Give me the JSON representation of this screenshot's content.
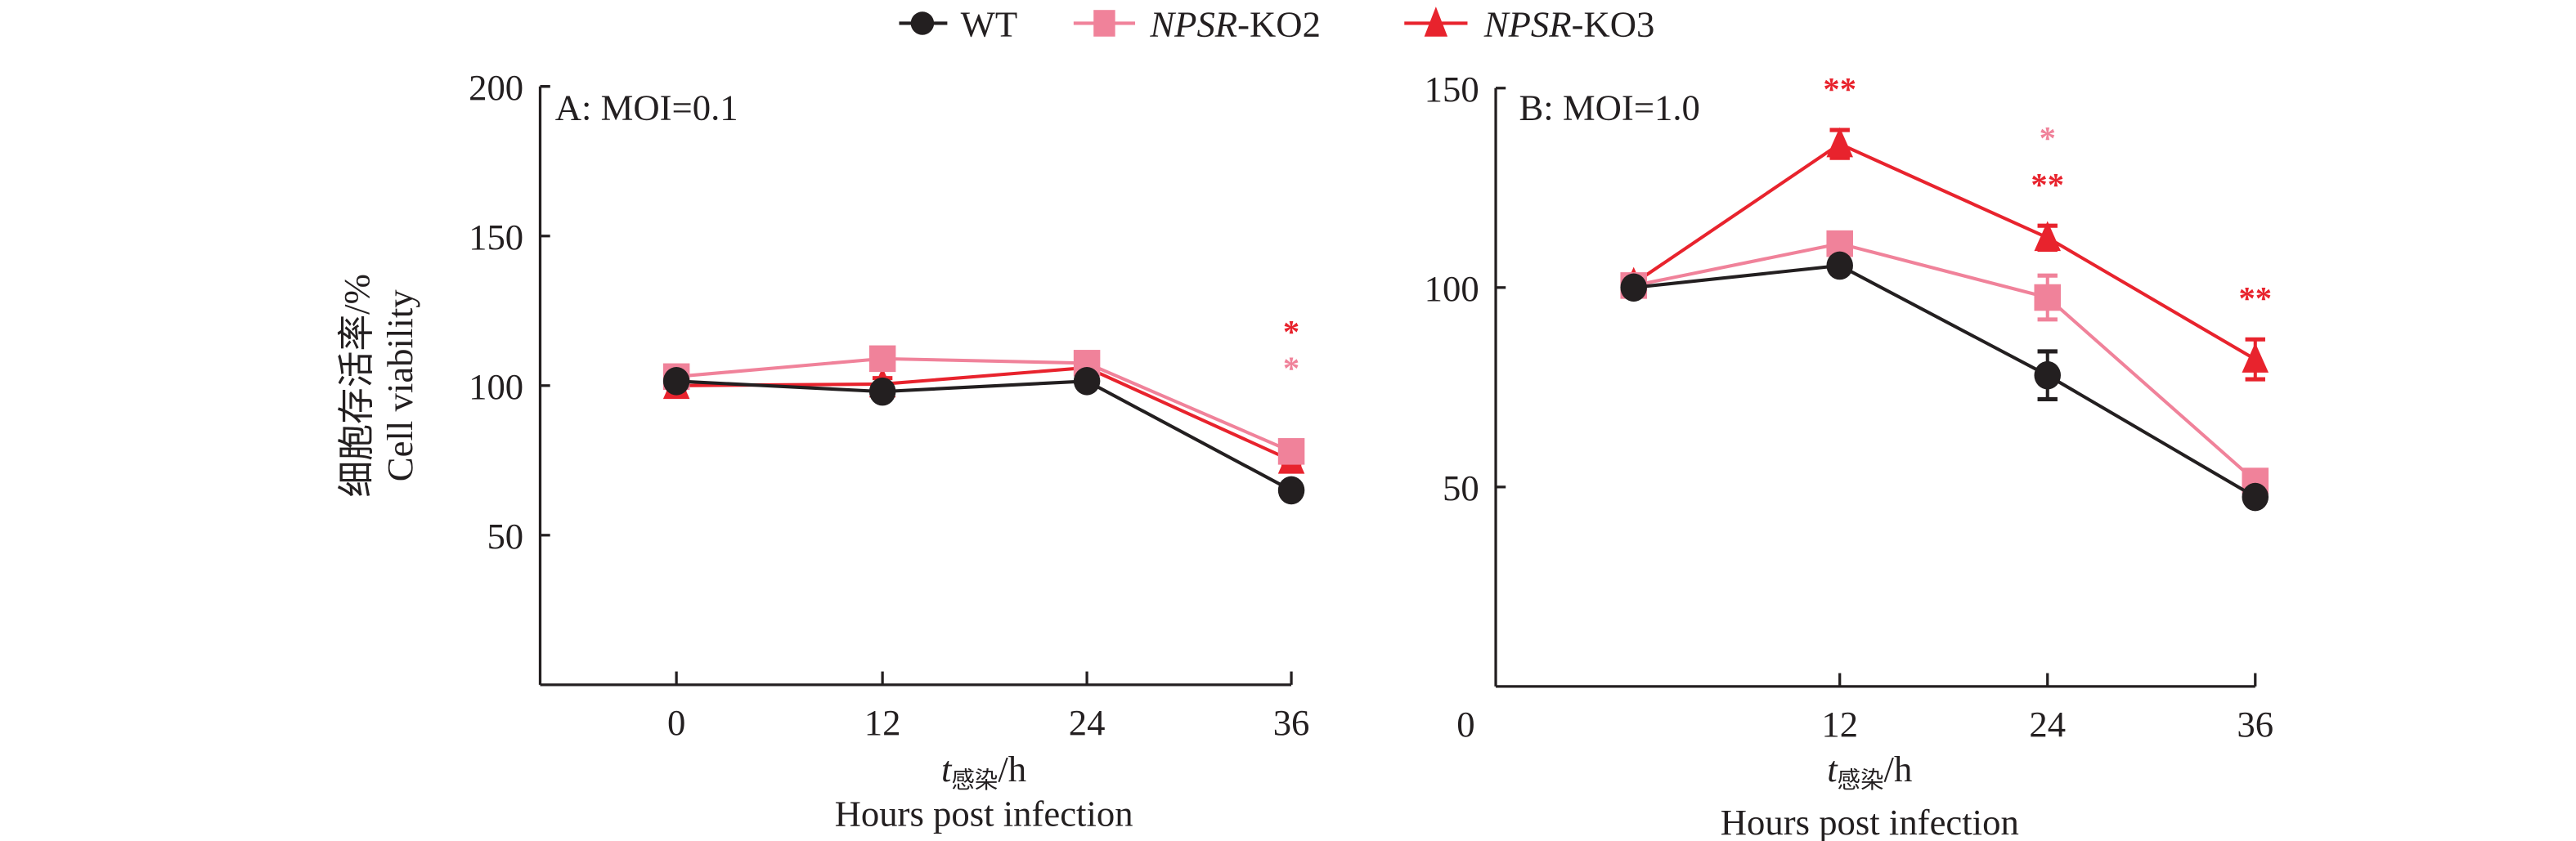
{
  "legend": [
    {
      "name": "WT",
      "italic_part": "",
      "plain_part": "WT",
      "color": "#231f20",
      "marker": "circle"
    },
    {
      "name": "NPSR-KO2",
      "italic_part": "NPSR",
      "plain_part": "-KO2",
      "color": "#f0829a",
      "marker": "square"
    },
    {
      "name": "NPSR-KO3",
      "italic_part": "NPSR",
      "plain_part": "-KO3",
      "color": "#e8232d",
      "marker": "triangle"
    }
  ],
  "y_axis_label": {
    "line1": "细胞存活率/%",
    "line2": "Cell viability"
  },
  "x_axis_label": {
    "var": "t",
    "sub": "感染",
    "unit": "/h",
    "line2": "Hours post infection"
  },
  "chart_data": [
    {
      "type": "line",
      "title": "A: MOI=0.1",
      "xlabel": "t感染/h Hours post infection",
      "ylabel": "细胞存活率/% Cell viability",
      "x": [
        0,
        12,
        24,
        36
      ],
      "x_ticks": [
        "0",
        "12",
        "24",
        "36"
      ],
      "y_ticks": [
        "50",
        "100",
        "150",
        "200"
      ],
      "ylim": [
        0,
        200
      ],
      "series": [
        {
          "name": "WT",
          "values": [
            101.5,
            98,
            101.5,
            65
          ],
          "errors": [
            2,
            2,
            2,
            2
          ]
        },
        {
          "name": "NPSR-KO2",
          "values": [
            103,
            109,
            107.5,
            78
          ],
          "errors": [
            2,
            2,
            2,
            3
          ]
        },
        {
          "name": "NPSR-KO3",
          "values": [
            100,
            100.5,
            106,
            75
          ],
          "errors": [
            2,
            2,
            1.5,
            2
          ]
        }
      ],
      "annotations": [
        {
          "x": 36,
          "text": "*",
          "series": "NPSR-KO3"
        },
        {
          "x": 36,
          "text": "*",
          "series": "NPSR-KO2"
        }
      ]
    },
    {
      "type": "line",
      "title": "B: MOI=1.0",
      "xlabel": "t感染/h Hours post infection",
      "ylabel": "",
      "x": [
        0,
        12,
        24,
        36
      ],
      "x_ticks": [
        "0",
        "12",
        "24",
        "36"
      ],
      "y_ticks": [
        "50",
        "100",
        "150"
      ],
      "ylim": [
        0,
        150
      ],
      "series": [
        {
          "name": "WT",
          "values": [
            100,
            105.5,
            78,
            47.5
          ],
          "errors": [
            1.5,
            1.5,
            6,
            1.5
          ]
        },
        {
          "name": "NPSR-KO2",
          "values": [
            100.5,
            111,
            97.5,
            51.5
          ],
          "errors": [
            2,
            2,
            5.5,
            2
          ]
        },
        {
          "name": "NPSR-KO3",
          "values": [
            101,
            136,
            112.5,
            82
          ],
          "errors": [
            1.5,
            3.5,
            3,
            5
          ]
        }
      ],
      "annotations": [
        {
          "x": 12,
          "text": "**",
          "series": "NPSR-KO3"
        },
        {
          "x": 24,
          "text": "*",
          "series": "NPSR-KO2"
        },
        {
          "x": 24,
          "text": "**",
          "series": "NPSR-KO3"
        },
        {
          "x": 36,
          "text": "**",
          "series": "NPSR-KO3"
        }
      ]
    }
  ]
}
